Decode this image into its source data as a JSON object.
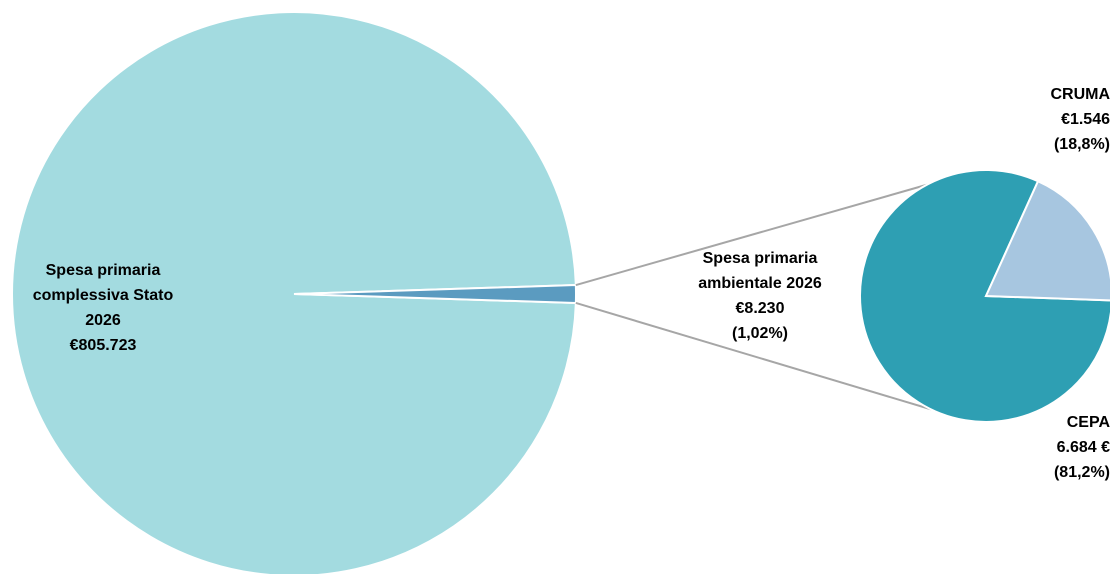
{
  "chart_data": [
    {
      "type": "pie",
      "categories": [
        "Spesa primaria complessiva Stato 2026",
        "Spesa primaria ambientale 2026"
      ],
      "values": [
        805723,
        8230
      ],
      "colors": [
        "#a3dbe0",
        "#5b9bc0"
      ],
      "labels": [
        {
          "lines": [
            "Spesa primaria",
            "complessiva Stato",
            "2026",
            "€805.723"
          ]
        },
        {
          "lines": [
            "Spesa primaria",
            "ambientale 2026",
            "€8.230",
            "(1,02%)"
          ]
        }
      ]
    },
    {
      "type": "pie",
      "categories": [
        "CRUMA",
        "CEPA"
      ],
      "values": [
        1546,
        6684
      ],
      "percent": [
        18.8,
        81.2
      ],
      "colors": [
        "#a7c6e0",
        "#2e9fb3"
      ],
      "labels": [
        {
          "lines": [
            "CRUMA",
            "€1.546",
            "(18,8%)"
          ]
        },
        {
          "lines": [
            "CEPA",
            "6.684 €",
            "(81,2%)"
          ]
        }
      ]
    }
  ],
  "colors": {
    "connector": "#a6a6a6",
    "slice_border": "#ffffff"
  }
}
